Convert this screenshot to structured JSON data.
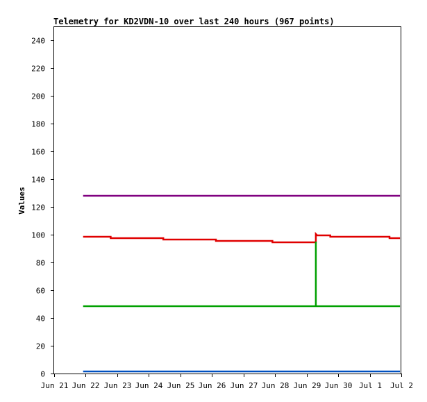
{
  "chart_data": {
    "type": "line",
    "title": "Telemetry for KD2VDN-10 over last 240 hours (967 points)",
    "xlabel": "",
    "ylabel": "Values",
    "ylim": [
      0,
      250
    ],
    "xlim": [
      "Jun 21",
      "Jul 2"
    ],
    "x_tick_labels": [
      "Jun 21",
      "Jun 22",
      "Jun 23",
      "Jun 24",
      "Jun 25",
      "Jun 26",
      "Jun 27",
      "Jun 28",
      "Jun 29",
      "Jun 30",
      "Jul 1",
      "Jul 2"
    ],
    "y_ticks": [
      0,
      20,
      40,
      60,
      80,
      100,
      120,
      140,
      160,
      180,
      200,
      220,
      240
    ],
    "grid": false,
    "legend": "none",
    "series": [
      {
        "color": "#800080",
        "points": [
          [
            "Jun 21 22:00",
            128
          ],
          [
            "Jul 1 23:00",
            128
          ]
        ]
      },
      {
        "color": "#e00000",
        "points": [
          [
            "Jun 21 22:00",
            98.5
          ],
          [
            "Jun 22 19:00",
            98.5
          ],
          [
            "Jun 22 19:00",
            97.5
          ],
          [
            "Jun 24 11:00",
            97.5
          ],
          [
            "Jun 24 11:00",
            96.5
          ],
          [
            "Jun 26 03:00",
            96.5
          ],
          [
            "Jun 26 03:00",
            95.5
          ],
          [
            "Jun 27 22:00",
            95.5
          ],
          [
            "Jun 27 22:00",
            94.5
          ],
          [
            "Jun 29 07:00",
            94.5
          ],
          [
            "Jun 29 07:00",
            100.5
          ],
          [
            "Jun 29 08:00",
            99.5
          ],
          [
            "Jun 29 18:00",
            99.5
          ],
          [
            "Jun 29 18:00",
            98.5
          ],
          [
            "Jul 1 15:00",
            98.5
          ],
          [
            "Jul 1 15:00",
            97.5
          ],
          [
            "Jul 1 23:00",
            97.5
          ]
        ]
      },
      {
        "color": "#00a000",
        "points": [
          [
            "Jun 21 22:00",
            48.5
          ],
          [
            "Jun 29 07:00",
            48.5
          ],
          [
            "Jun 29 07:00",
            95
          ],
          [
            "Jun 29 07:00",
            48.5
          ],
          [
            "Jul 1 23:00",
            48.5
          ]
        ]
      },
      {
        "color": "#0050c0",
        "points": [
          [
            "Jun 21 22:00",
            1.5
          ],
          [
            "Jul 1 23:00",
            1.5
          ]
        ]
      }
    ]
  }
}
